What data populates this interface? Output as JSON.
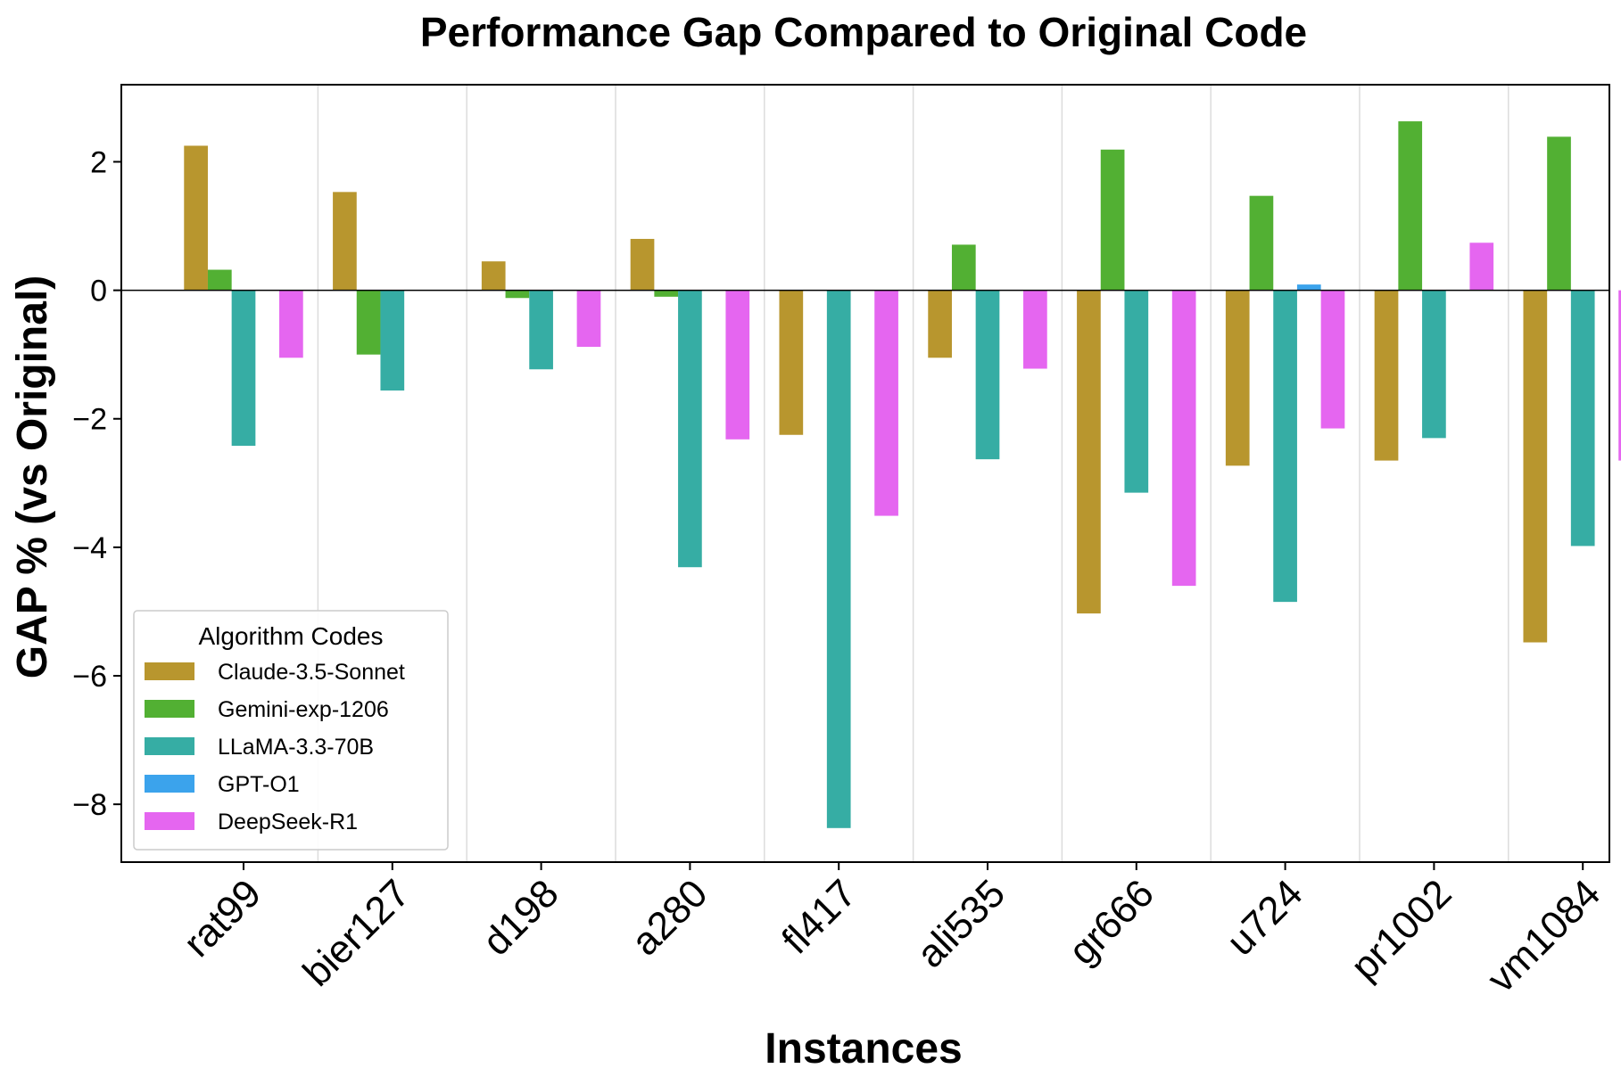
{
  "chart_data": {
    "type": "bar",
    "title": "Performance Gap Compared to Original Code",
    "xlabel": "Instances",
    "ylabel": "GAP % (vs Original)",
    "categories": [
      "rat99",
      "bier127",
      "d198",
      "a280",
      "fl417",
      "ali535",
      "gr666",
      "u724",
      "pr1002",
      "vm1084"
    ],
    "ylim": [
      -8.9,
      3.2
    ],
    "yticks": [
      -8,
      -6,
      -4,
      -2,
      0,
      2
    ],
    "ytick_labels": [
      "−8",
      "−6",
      "−4",
      "−2",
      "0",
      "2"
    ],
    "grid": "vertical",
    "legend": {
      "title": "Algorithm Codes",
      "placement": "lower-left"
    },
    "series": [
      {
        "name": "Claude-3.5-Sonnet",
        "color": "#b8962e",
        "values": [
          2.25,
          1.53,
          0.45,
          0.8,
          -2.25,
          -1.05,
          -5.03,
          -2.73,
          -2.65,
          -5.48
        ]
      },
      {
        "name": "Gemini-exp-1206",
        "color": "#52b033",
        "values": [
          0.32,
          -1.0,
          -0.12,
          -0.1,
          0,
          0.71,
          2.19,
          1.47,
          2.63,
          2.39
        ]
      },
      {
        "name": "LLaMA-3.3-70B",
        "color": "#36ada4",
        "values": [
          -2.42,
          -1.56,
          -1.23,
          -4.31,
          -8.37,
          -2.63,
          -3.15,
          -4.85,
          -2.3,
          -3.98
        ]
      },
      {
        "name": "GPT-O1",
        "color": "#3ba3ec",
        "values": [
          0,
          0,
          0,
          0,
          0,
          0,
          0,
          0.09,
          0,
          0
        ]
      },
      {
        "name": "DeepSeek-R1",
        "color": "#e566f0",
        "values": [
          -1.05,
          0,
          -0.88,
          -2.32,
          -3.51,
          -1.22,
          -4.6,
          -2.15,
          0.74,
          -2.65
        ]
      }
    ]
  }
}
